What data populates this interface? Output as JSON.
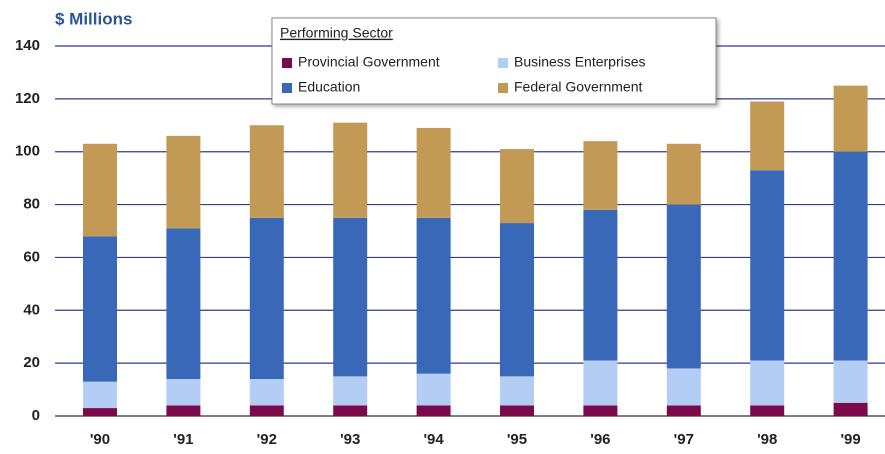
{
  "chart_data": {
    "type": "stacked-bar",
    "y_label": "$ Millions",
    "legend_title": "Performing Sector",
    "categories": [
      "'90",
      "'91",
      "'92",
      "'93",
      "'94",
      "'95",
      "'96",
      "'97",
      "'98",
      "'99"
    ],
    "series": [
      {
        "name": "Provincial Government",
        "color": "#7a0a4a",
        "values": [
          3,
          4,
          4,
          4,
          4,
          4,
          4,
          4,
          4,
          5
        ]
      },
      {
        "name": "Business Enterprises",
        "color": "#b3cdf5",
        "values": [
          10,
          10,
          10,
          11,
          12,
          11,
          17,
          14,
          17,
          16
        ]
      },
      {
        "name": "Education",
        "color": "#3a68b8",
        "values": [
          55,
          57,
          61,
          60,
          59,
          58,
          57,
          62,
          72,
          79
        ]
      },
      {
        "name": "Federal Government",
        "color": "#c29a55",
        "values": [
          35,
          35,
          35,
          36,
          34,
          28,
          26,
          23,
          26,
          25
        ]
      }
    ],
    "ylim": [
      0,
      140
    ],
    "yticks": [
      0,
      20,
      40,
      60,
      80,
      100,
      120,
      140
    ],
    "grid": true,
    "legend": "top"
  }
}
